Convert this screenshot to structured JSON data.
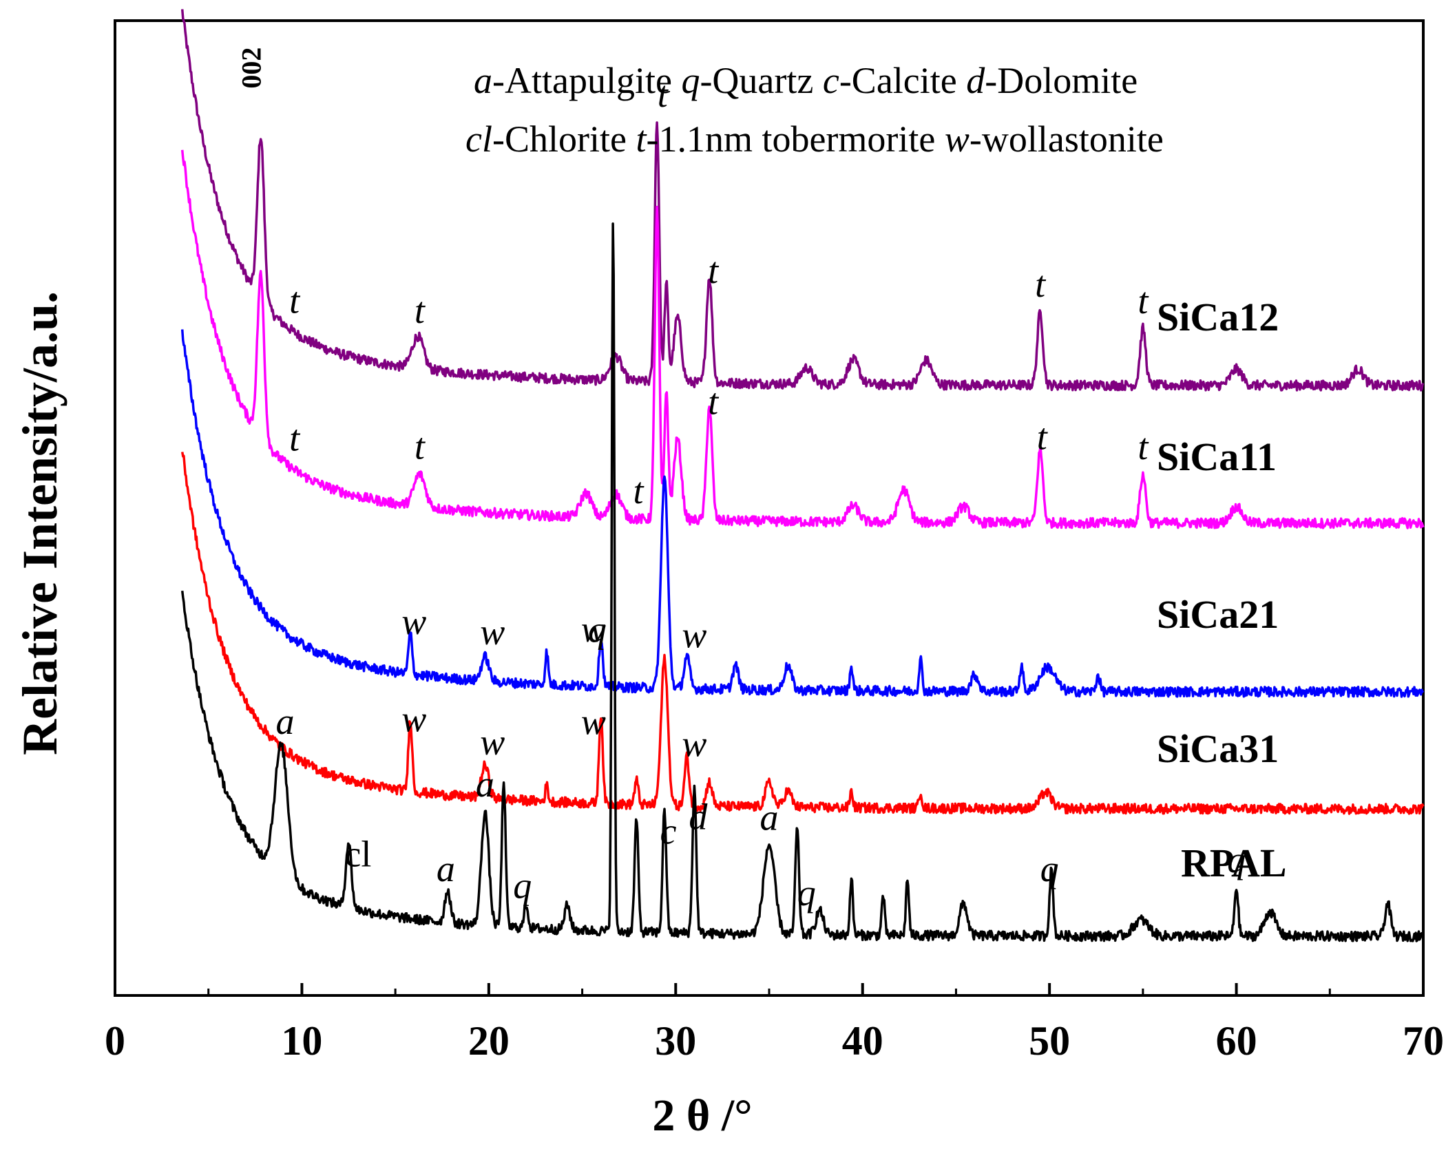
{
  "chart_data": {
    "type": "line",
    "title": "",
    "xlabel": "2 θ /°",
    "ylabel": "Relative Intensity/a.u.",
    "xlim": [
      0,
      70
    ],
    "x_ticks": [
      0,
      10,
      20,
      30,
      40,
      50,
      60,
      70
    ],
    "y_ticks_shown": false,
    "grid": false,
    "legend_text": [
      "a-Attapulgite q-Quartz c-Calcite d-Dolomite",
      "cl-Chlorite t-1.1nm tobermorite  w-wollastonite"
    ],
    "series": [
      {
        "name": "SiCa12",
        "color": "#800080",
        "baseline": 0.165,
        "start_rise": 0.4,
        "peaks": [
          [
            7.8,
            0.2,
            0.18
          ],
          [
            16.2,
            0.04,
            0.3
          ],
          [
            26.8,
            0.03,
            0.3
          ],
          [
            29.0,
            0.32,
            0.12
          ],
          [
            29.5,
            0.12,
            0.1
          ],
          [
            30.1,
            0.08,
            0.2
          ],
          [
            31.8,
            0.13,
            0.15
          ],
          [
            37,
            0.02,
            0.3
          ],
          [
            39.5,
            0.03,
            0.3
          ],
          [
            43.4,
            0.03,
            0.3
          ],
          [
            49.5,
            0.09,
            0.15
          ],
          [
            55.0,
            0.07,
            0.15
          ],
          [
            60,
            0.02,
            0.3
          ],
          [
            66.5,
            0.02,
            0.3
          ]
        ]
      },
      {
        "name": "SiCa11",
        "color": "#ff00ff",
        "baseline": 0.165,
        "start_rise": 0.4,
        "peaks": [
          [
            7.8,
            0.2,
            0.18
          ],
          [
            16.3,
            0.04,
            0.3
          ],
          [
            25.2,
            0.03,
            0.3
          ],
          [
            26.8,
            0.03,
            0.3
          ],
          [
            29.0,
            0.38,
            0.12
          ],
          [
            29.5,
            0.16,
            0.1
          ],
          [
            30.1,
            0.1,
            0.2
          ],
          [
            31.8,
            0.14,
            0.15
          ],
          [
            39.5,
            0.02,
            0.3
          ],
          [
            42.2,
            0.04,
            0.3
          ],
          [
            45.4,
            0.02,
            0.3
          ],
          [
            49.5,
            0.09,
            0.15
          ],
          [
            55.0,
            0.06,
            0.15
          ],
          [
            60,
            0.02,
            0.3
          ]
        ]
      },
      {
        "name": "SiCa21",
        "color": "#0000ff",
        "baseline": 0.16,
        "start_rise": 0.38,
        "peaks": [
          [
            15.8,
            0.05,
            0.1
          ],
          [
            19.8,
            0.03,
            0.2
          ],
          [
            23.1,
            0.04,
            0.08
          ],
          [
            26.0,
            0.06,
            0.1
          ],
          [
            29.4,
            0.26,
            0.18
          ],
          [
            30.6,
            0.04,
            0.15
          ],
          [
            33.2,
            0.03,
            0.15
          ],
          [
            36,
            0.03,
            0.2
          ],
          [
            39.4,
            0.03,
            0.08
          ],
          [
            43.1,
            0.04,
            0.08
          ],
          [
            46,
            0.02,
            0.2
          ],
          [
            48.5,
            0.03,
            0.1
          ],
          [
            49.9,
            0.03,
            0.4
          ],
          [
            52.6,
            0.02,
            0.1
          ]
        ]
      },
      {
        "name": "SiCa31",
        "color": "#ff0000",
        "baseline": 0.165,
        "start_rise": 0.38,
        "peaks": [
          [
            15.8,
            0.09,
            0.1
          ],
          [
            19.8,
            0.04,
            0.2
          ],
          [
            23.1,
            0.02,
            0.08
          ],
          [
            26.0,
            0.11,
            0.1
          ],
          [
            27.9,
            0.03,
            0.1
          ],
          [
            29.4,
            0.18,
            0.18
          ],
          [
            30.6,
            0.06,
            0.12
          ],
          [
            31.8,
            0.03,
            0.15
          ],
          [
            35,
            0.03,
            0.2
          ],
          [
            36,
            0.02,
            0.2
          ],
          [
            39.4,
            0.02,
            0.08
          ],
          [
            43.1,
            0.02,
            0.08
          ],
          [
            49.8,
            0.02,
            0.3
          ]
        ]
      },
      {
        "name": "RPAL",
        "color": "#000000",
        "baseline": 0.11,
        "start_rise": 0.36,
        "peaks": [
          [
            8.9,
            0.16,
            0.35
          ],
          [
            12.5,
            0.08,
            0.15
          ],
          [
            17.8,
            0.04,
            0.15
          ],
          [
            19.8,
            0.14,
            0.2
          ],
          [
            20.8,
            0.18,
            0.1
          ],
          [
            22.0,
            0.03,
            0.1
          ],
          [
            24.2,
            0.03,
            0.15
          ],
          [
            26.65,
            0.88,
            0.07
          ],
          [
            27.9,
            0.14,
            0.1
          ],
          [
            29.4,
            0.15,
            0.1
          ],
          [
            31.0,
            0.18,
            0.1
          ],
          [
            35.0,
            0.11,
            0.3
          ],
          [
            36.5,
            0.13,
            0.1
          ],
          [
            37.7,
            0.03,
            0.2
          ],
          [
            39.4,
            0.07,
            0.08
          ],
          [
            41.1,
            0.05,
            0.08
          ],
          [
            42.4,
            0.07,
            0.08
          ],
          [
            45.4,
            0.04,
            0.2
          ],
          [
            50.1,
            0.08,
            0.1
          ],
          [
            54.9,
            0.02,
            0.4
          ],
          [
            60.0,
            0.06,
            0.1
          ],
          [
            61.8,
            0.03,
            0.3
          ],
          [
            68.1,
            0.04,
            0.15
          ]
        ]
      }
    ],
    "series_labels": [
      {
        "text": "SiCa12",
        "near": "SiCa12"
      },
      {
        "text": "SiCa11",
        "near": "SiCa11"
      },
      {
        "text": "SiCa21",
        "near": "SiCa21"
      },
      {
        "text": "SiCa31",
        "near": "SiCa31"
      },
      {
        "text": "RPAL",
        "near": "RPAL"
      }
    ],
    "annotations": [
      {
        "text": "002",
        "x": 7.8,
        "series": "SiCa12",
        "style": "bold"
      },
      {
        "text": "t",
        "x": 9.6,
        "series": "SiCa12",
        "style": "italic"
      },
      {
        "text": "t",
        "x": 16.3,
        "series": "SiCa12",
        "style": "italic"
      },
      {
        "text": "t",
        "x": 29.3,
        "series": "SiCa12",
        "style": "italic"
      },
      {
        "text": "t",
        "x": 32.0,
        "series": "SiCa12",
        "style": "italic"
      },
      {
        "text": "t",
        "x": 49.5,
        "series": "SiCa12",
        "style": "italic"
      },
      {
        "text": "t",
        "x": 55.0,
        "series": "SiCa12",
        "style": "italic"
      },
      {
        "text": "t",
        "x": 9.6,
        "series": "SiCa11",
        "style": "italic"
      },
      {
        "text": "t",
        "x": 16.3,
        "series": "SiCa11",
        "style": "italic"
      },
      {
        "text": "t",
        "x": 28.0,
        "series": "SiCa11",
        "style": "italic"
      },
      {
        "text": "t",
        "x": 32.0,
        "series": "SiCa11",
        "style": "italic"
      },
      {
        "text": "t",
        "x": 49.6,
        "series": "SiCa11",
        "style": "italic"
      },
      {
        "text": "t",
        "x": 55.0,
        "series": "SiCa11",
        "style": "italic"
      },
      {
        "text": "q",
        "x": 25.8,
        "series": "SiCa21",
        "style": "italic"
      },
      {
        "text": "w",
        "x": 31.0,
        "series": "SiCa21",
        "style": "italic"
      },
      {
        "text": "w",
        "x": 16.0,
        "series": "SiCa21",
        "style": "italic"
      },
      {
        "text": "w",
        "x": 20.2,
        "series": "SiCa21",
        "style": "italic"
      },
      {
        "text": "w",
        "x": 25.6,
        "series": "SiCa21",
        "style": "italic"
      },
      {
        "text": "w",
        "x": 16.0,
        "series": "SiCa31",
        "style": "italic"
      },
      {
        "text": "w",
        "x": 20.2,
        "series": "SiCa31",
        "style": "italic"
      },
      {
        "text": "w",
        "x": 25.6,
        "series": "SiCa31",
        "style": "italic"
      },
      {
        "text": "w",
        "x": 31.0,
        "series": "SiCa31",
        "style": "italic"
      },
      {
        "text": "a",
        "x": 9.1,
        "series": "RPAL",
        "style": "italic"
      },
      {
        "text": "cl",
        "x": 13.0,
        "series": "RPAL",
        "style": "upright"
      },
      {
        "text": "a",
        "x": 17.7,
        "series": "RPAL",
        "style": "italic"
      },
      {
        "text": "a",
        "x": 19.8,
        "series": "RPAL",
        "style": "italic"
      },
      {
        "text": "q",
        "x": 21.8,
        "series": "RPAL",
        "style": "italic"
      },
      {
        "text": "c",
        "x": 29.6,
        "series": "RPAL",
        "style": "italic"
      },
      {
        "text": "d",
        "x": 31.2,
        "series": "RPAL",
        "style": "italic"
      },
      {
        "text": "a",
        "x": 35.0,
        "series": "RPAL",
        "style": "italic"
      },
      {
        "text": "q",
        "x": 37.0,
        "series": "RPAL",
        "style": "italic"
      },
      {
        "text": "q",
        "x": 50.0,
        "series": "RPAL",
        "style": "italic"
      },
      {
        "text": "q",
        "x": 60.0,
        "series": "RPAL",
        "style": "italic"
      }
    ]
  }
}
